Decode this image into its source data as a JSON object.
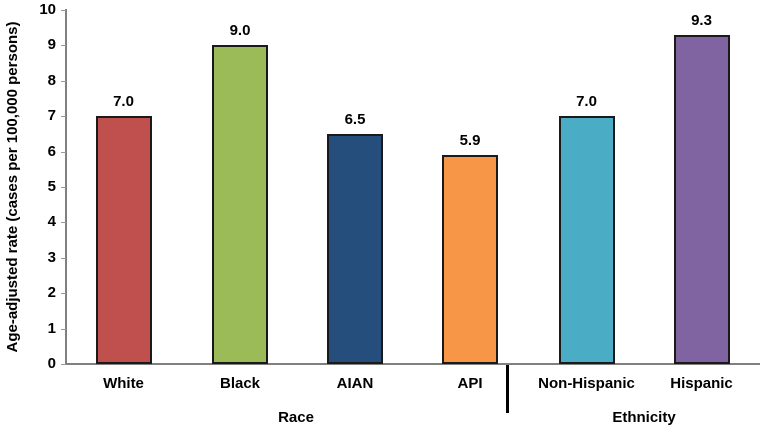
{
  "chart_data": {
    "type": "bar",
    "title": "",
    "xlabel": "",
    "ylabel": "Age-adjusted rate (cases per 100,000 persons)",
    "ylim": [
      0,
      10
    ],
    "yticks": [
      "0",
      "1",
      "2",
      "3",
      "4",
      "5",
      "6",
      "7",
      "8",
      "9",
      "10"
    ],
    "grid": false,
    "legend_position": "none",
    "categories": [
      "White",
      "Black",
      "AIAN",
      "API",
      "Non-Hispanic",
      "Hispanic"
    ],
    "values": [
      7.0,
      9.0,
      6.5,
      5.9,
      7.0,
      9.3
    ],
    "value_labels": [
      "7.0",
      "9.0",
      "6.5",
      "5.9",
      "7.0",
      "9.3"
    ],
    "series": [
      {
        "name": "Age-adjusted rate",
        "values": [
          7.0,
          9.0,
          6.5,
          5.9,
          7.0,
          9.3
        ]
      }
    ],
    "bar_colors": [
      "#C0504D",
      "#9BBB59",
      "#254E7D",
      "#F79646",
      "#4BACC6",
      "#8064A2"
    ],
    "bar_border_color": "#1A1A1A",
    "axis_color": "#808080",
    "divider_color": "#000000",
    "text_color": "#000000",
    "groups": [
      {
        "label": "Race",
        "categories": [
          "White",
          "Black",
          "AIAN",
          "API"
        ]
      },
      {
        "label": "Ethnicity",
        "categories": [
          "Non-Hispanic",
          "Hispanic"
        ]
      }
    ]
  }
}
